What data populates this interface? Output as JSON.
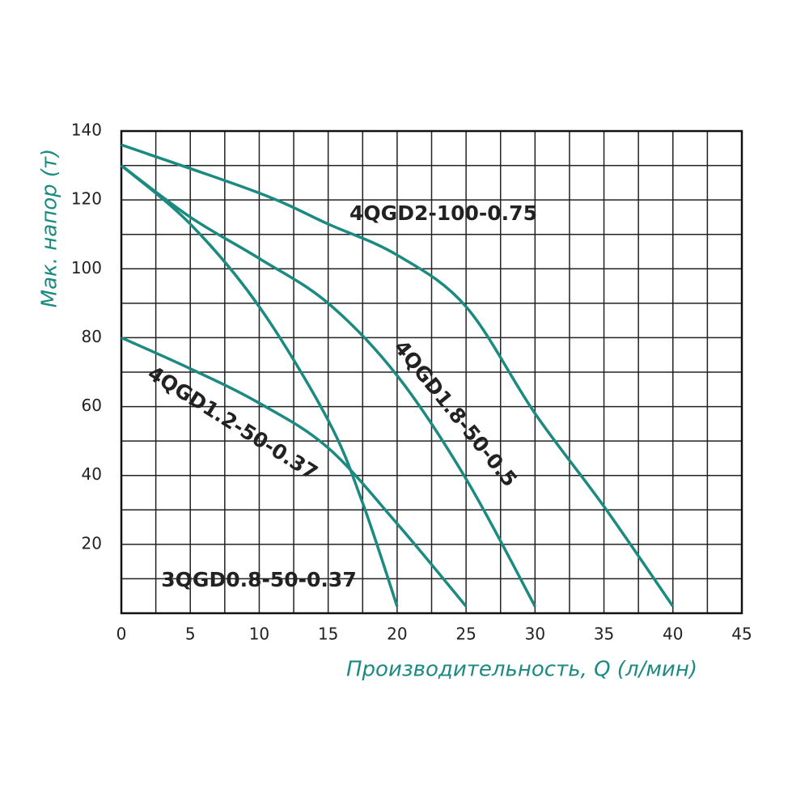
{
  "chart_data": {
    "type": "line",
    "x_label": "Производительность, Q (л/мин)",
    "y_label": "Мак. напор (т)",
    "xlim": [
      0,
      45
    ],
    "ylim": [
      0,
      140
    ],
    "xticks": [
      0,
      5,
      10,
      15,
      20,
      25,
      30,
      35,
      40,
      45
    ],
    "yticks": [
      20,
      40,
      60,
      80,
      100,
      120,
      140
    ],
    "xgrid": [
      2.5,
      5,
      7.5,
      10,
      12.5,
      15,
      17.5,
      20,
      22.5,
      25,
      27.5,
      30,
      32.5,
      35,
      37.5,
      40,
      42.5
    ],
    "ygrid": [
      10,
      20,
      30,
      40,
      50,
      60,
      70,
      80,
      90,
      100,
      110,
      120,
      130
    ],
    "series": [
      {
        "name": "4QGD2-100-0.75",
        "color": "#1b8a80",
        "x": [
          0,
          10,
          15,
          20,
          25,
          30,
          35,
          40
        ],
        "values": [
          136,
          122,
          113,
          104,
          89,
          58,
          31,
          2
        ]
      },
      {
        "name": "4QGD1.8-50-0.5",
        "color": "#1b8a80",
        "x": [
          0,
          5,
          10,
          15,
          20,
          25,
          30
        ],
        "values": [
          130,
          115,
          103,
          90,
          69,
          39,
          2
        ]
      },
      {
        "name": "4QGD1.2-50-0.37",
        "color": "#1b8a80",
        "x": [
          0,
          5,
          10,
          15,
          20,
          25
        ],
        "values": [
          80,
          71,
          61,
          48,
          26,
          2
        ]
      },
      {
        "name": "3QGD0.8-50-0.37",
        "color": "#1b8a80",
        "x": [
          0,
          5,
          10,
          15,
          17.5,
          20
        ],
        "values": [
          130,
          113,
          89,
          56,
          32,
          2
        ]
      }
    ]
  }
}
